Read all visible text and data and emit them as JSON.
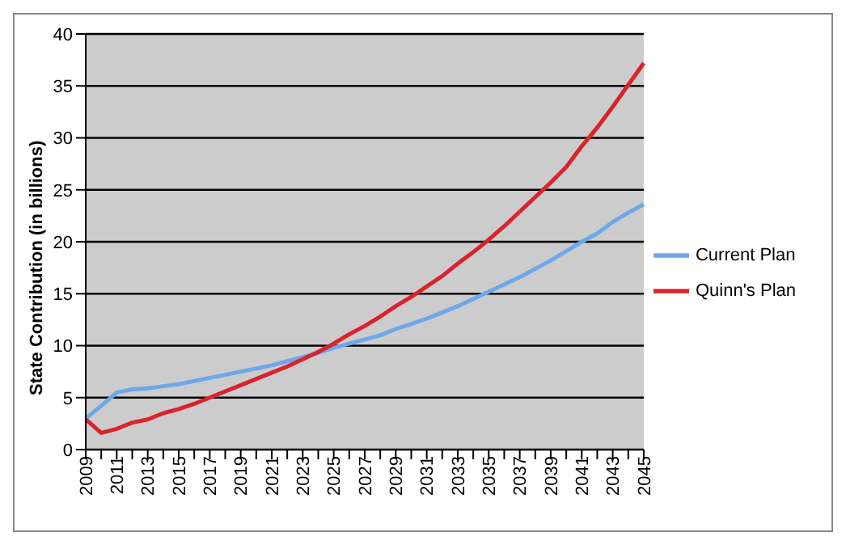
{
  "chart_data": {
    "type": "line",
    "ylabel": "State Contribution (in billions)",
    "categories": [
      "2009",
      null,
      "2011",
      null,
      "2013",
      null,
      "2015",
      null,
      "2017",
      null,
      "2019",
      null,
      "2021",
      null,
      "2023",
      null,
      "2025",
      null,
      "2027",
      null,
      "2029",
      null,
      "2031",
      null,
      "2033",
      null,
      "2035",
      null,
      "2037",
      null,
      "2039",
      null,
      "2041",
      null,
      "2043",
      null,
      "2045"
    ],
    "series": [
      {
        "name": "Current Plan",
        "color": "#6fa8ea",
        "values": [
          3.0,
          4.2,
          5.5,
          5.8,
          5.9,
          6.1,
          6.3,
          6.6,
          6.9,
          7.2,
          7.5,
          7.8,
          8.1,
          8.5,
          8.9,
          9.3,
          9.8,
          10.2,
          10.6,
          11.0,
          11.6,
          12.1,
          12.6,
          13.2,
          13.8,
          14.5,
          15.2,
          15.9,
          16.6,
          17.4,
          18.2,
          19.1,
          20.0,
          20.8,
          21.9,
          22.8,
          23.6
        ]
      },
      {
        "name": "Quinn's Plan",
        "color": "#d9232d",
        "values": [
          2.9,
          1.6,
          2.0,
          2.6,
          2.9,
          3.5,
          3.9,
          4.4,
          5.0,
          5.6,
          6.2,
          6.8,
          7.4,
          8.0,
          8.7,
          9.4,
          10.2,
          11.1,
          11.9,
          12.8,
          13.8,
          14.7,
          15.7,
          16.7,
          17.9,
          19.0,
          20.2,
          21.5,
          22.9,
          24.3,
          25.7,
          27.2,
          29.2,
          31.0,
          33.0,
          35.1,
          37.2
        ]
      }
    ],
    "ylim": [
      0,
      40
    ],
    "yticks": [
      0,
      5,
      10,
      15,
      20,
      25,
      30,
      35,
      40
    ],
    "grid": "y",
    "legend": "right",
    "marker": "none",
    "line_style": "solid"
  }
}
